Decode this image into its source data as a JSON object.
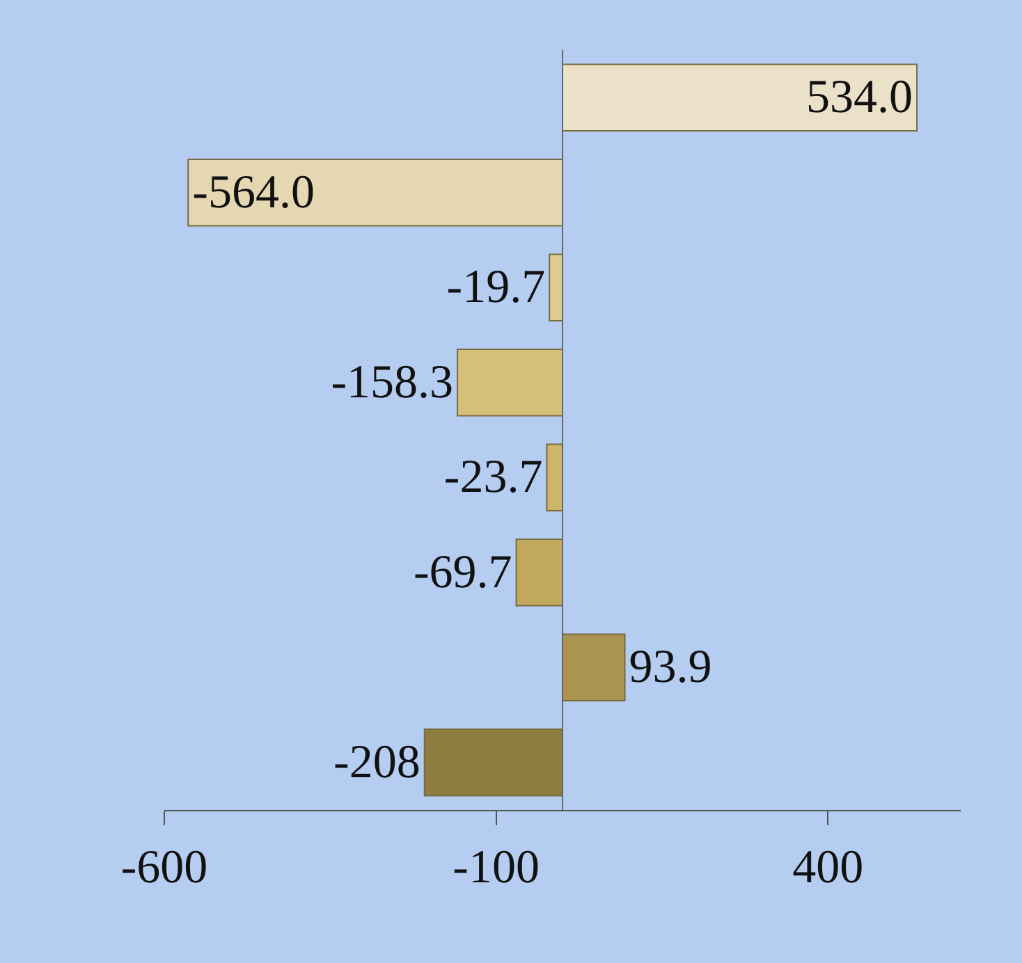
{
  "chart_data": {
    "type": "bar",
    "orientation": "horizontal",
    "categories": [
      null,
      null,
      null,
      null,
      null,
      null,
      null,
      null
    ],
    "values": [
      534.0,
      -564.0,
      -19.7,
      -158.3,
      -23.7,
      -69.7,
      93.9,
      -208
    ],
    "colors": [
      "#ebe1c9",
      "#e4d7b1",
      "#dccb92",
      "#d6c17b",
      "#cdb56a",
      "#c0a85d",
      "#ab9450",
      "#8e7c40"
    ],
    "value_labels": [
      "534.0",
      "-564.0",
      "-19.7",
      "-158.3",
      "-23.7",
      "-69.7",
      "93.9",
      "-208"
    ],
    "xlim": [
      -600,
      600
    ],
    "xticks": [
      -600,
      -100,
      400
    ],
    "grid": false
  }
}
